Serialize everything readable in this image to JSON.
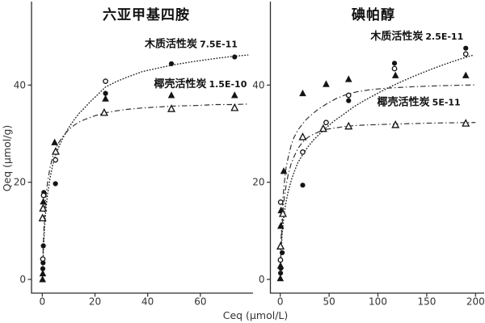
{
  "figure": {
    "x_axis_label": "Ceq (μmol/L)",
    "y_axis_label": "Qeq (μmol/g)",
    "ink_color": "#141414",
    "background_color": "#ffffff"
  },
  "chart_data": [
    {
      "type": "scatter",
      "title": "六亚甲基四胺",
      "xlabel": "Ceq (μmol/L)",
      "ylabel": "Qeq (μmol/g)",
      "xlim": [
        -4,
        80
      ],
      "ylim": [
        -2,
        57
      ],
      "xticks": [
        0,
        20,
        40,
        60
      ],
      "yticks": [
        0,
        20,
        40
      ],
      "grid": false,
      "annotations": [
        {
          "label": "木质活性炭",
          "value": "7.5E-11",
          "x": 56.5,
          "y": 47.8
        },
        {
          "label": "椰壳活性炭",
          "value": "1.5E-10",
          "x": 60,
          "y": 39.6
        }
      ],
      "series": [
        {
          "id": "wood-filled-circle",
          "name": "木质活性炭 (filled circle)",
          "marker": "circle-filled",
          "points": [
            [
              0.2,
              2.2
            ],
            [
              0.3,
              3.4
            ],
            [
              0.4,
              6.9
            ],
            [
              0.6,
              17.9
            ],
            [
              5,
              19.7
            ],
            [
              24,
              38.3
            ],
            [
              49,
              44.4
            ],
            [
              73,
              45.8
            ]
          ]
        },
        {
          "id": "wood-open-circle",
          "name": "木质活性炭 (open circle)",
          "marker": "circle-open",
          "points": [
            [
              0.2,
              4.2
            ],
            [
              0.5,
              17.3
            ],
            [
              5,
              24.6
            ],
            [
              24,
              40.8
            ]
          ]
        },
        {
          "id": "coconut-filled-triangle",
          "name": "椰壳活性炭 (filled triangle)",
          "marker": "triangle-filled",
          "points": [
            [
              0.1,
              0
            ],
            [
              0.2,
              1.2
            ],
            [
              0.4,
              16
            ],
            [
              4.7,
              28.2
            ],
            [
              24,
              37.2
            ],
            [
              49,
              37.9
            ],
            [
              73,
              37.9
            ]
          ]
        },
        {
          "id": "coconut-open-triangle",
          "name": "椰壳活性炭 (open triangle)",
          "marker": "triangle-open",
          "points": [
            [
              0.1,
              12.6
            ],
            [
              0.3,
              14.6
            ],
            [
              5.1,
              26.3
            ],
            [
              23.5,
              34.3
            ],
            [
              49,
              35.1
            ],
            [
              73,
              35.3
            ]
          ]
        }
      ],
      "curves": [
        {
          "id": "wood-fit",
          "style": "dotted",
          "points": [
            [
              0.15,
              2
            ],
            [
              0.4,
              5.5
            ],
            [
              0.7,
              9
            ],
            [
              1,
              12
            ],
            [
              1.5,
              15
            ],
            [
              2,
              17.5
            ],
            [
              3,
              21
            ],
            [
              4,
              23.6
            ],
            [
              5,
              25.5
            ],
            [
              6.5,
              27.6
            ],
            [
              8,
              29.3
            ],
            [
              10,
              31.2
            ],
            [
              12,
              32.8
            ],
            [
              14,
              34.2
            ],
            [
              16,
              35.3
            ],
            [
              18,
              36.5
            ],
            [
              20,
              37.5
            ],
            [
              24,
              39.6
            ],
            [
              28,
              40.7
            ],
            [
              32,
              41.6
            ],
            [
              38,
              42.8
            ],
            [
              44,
              43.5
            ],
            [
              50,
              44.2
            ],
            [
              58,
              44.9
            ],
            [
              66,
              45.5
            ],
            [
              72,
              45.9
            ],
            [
              78,
              46.2
            ]
          ]
        },
        {
          "id": "coconut-fit",
          "style": "dashdot",
          "points": [
            [
              0.15,
              3
            ],
            [
              0.4,
              7.5
            ],
            [
              0.7,
              11.5
            ],
            [
              1,
              14.5
            ],
            [
              1.5,
              17.6
            ],
            [
              2,
              20
            ],
            [
              3,
              23.2
            ],
            [
              4,
              25.3
            ],
            [
              5,
              26.8
            ],
            [
              6.5,
              28.4
            ],
            [
              8,
              29.6
            ],
            [
              10,
              30.8
            ],
            [
              12,
              31.7
            ],
            [
              14,
              32.4
            ],
            [
              16,
              32.9
            ],
            [
              18,
              33.3
            ],
            [
              20,
              33.7
            ],
            [
              24,
              34.3
            ],
            [
              28,
              34.7
            ],
            [
              32,
              35
            ],
            [
              38,
              35.3
            ],
            [
              44,
              35.5
            ],
            [
              50,
              35.7
            ],
            [
              58,
              35.8
            ],
            [
              66,
              36
            ],
            [
              72,
              36
            ],
            [
              78,
              36.1
            ]
          ]
        }
      ]
    },
    {
      "type": "scatter",
      "title": "碘帕醇",
      "xlabel": "Ceq (μmol/L)",
      "ylabel": "Qeq (μmol/g)",
      "xlim": [
        -10,
        210
      ],
      "ylim": [
        -2,
        57
      ],
      "xticks": [
        0,
        50,
        100,
        150,
        200
      ],
      "yticks": [
        0,
        20,
        40
      ],
      "grid": false,
      "annotations": [
        {
          "label": "木质活性炭",
          "value": "2.5E-11",
          "x": 140,
          "y": 49.4
        },
        {
          "label": "椰壳活性炭",
          "value": "5E-11",
          "x": 142,
          "y": 35.8
        }
      ],
      "series": [
        {
          "id": "wood-filled-circle",
          "name": "木质活性炭 (filled circle)",
          "marker": "circle-filled",
          "points": [
            [
              0.3,
              1.3
            ],
            [
              0.6,
              2.3
            ],
            [
              2,
              5.5
            ],
            [
              23,
              19.4
            ],
            [
              70,
              36.8
            ],
            [
              117,
              44.5
            ],
            [
              190,
              47.6
            ]
          ]
        },
        {
          "id": "wood-open-circle",
          "name": "木质活性炭 (open circle)",
          "marker": "circle-open",
          "points": [
            [
              0.2,
              4
            ],
            [
              0.4,
              15.9
            ],
            [
              23,
              26.2
            ],
            [
              47,
              32.3
            ],
            [
              70,
              37.9
            ],
            [
              117,
              43.4
            ],
            [
              190,
              46.4
            ]
          ]
        },
        {
          "id": "coconut-filled-triangle",
          "name": "椰壳活性炭 (filled triangle)",
          "marker": "triangle-filled",
          "points": [
            [
              0.1,
              0.2
            ],
            [
              0.3,
              2.8
            ],
            [
              0.5,
              11
            ],
            [
              0.8,
              14.2
            ],
            [
              3.6,
              22.3
            ],
            [
              23,
              38.3
            ],
            [
              47,
              40.2
            ],
            [
              70,
              41.2
            ],
            [
              118,
              42
            ],
            [
              190,
              42
            ]
          ]
        },
        {
          "id": "coconut-open-triangle",
          "name": "椰壳活性炭 (open triangle)",
          "marker": "triangle-open",
          "points": [
            [
              0.3,
              6.8
            ],
            [
              2.7,
              13.5
            ],
            [
              23,
              29.3
            ],
            [
              44,
              31
            ],
            [
              70,
              31.5
            ],
            [
              118,
              31.8
            ],
            [
              190,
              32.1
            ]
          ]
        }
      ],
      "curves": [
        {
          "id": "wood-fit",
          "style": "dotted",
          "points": [
            [
              0.5,
              4
            ],
            [
              1,
              6
            ],
            [
              2,
              9.5
            ],
            [
              3,
              11.5
            ],
            [
              4,
              13.5
            ],
            [
              6,
              16
            ],
            [
              8,
              18
            ],
            [
              11,
              20.2
            ],
            [
              14,
              22
            ],
            [
              18,
              24
            ],
            [
              23,
              25.7
            ],
            [
              28,
              27.2
            ],
            [
              34,
              28.7
            ],
            [
              40,
              29.9
            ],
            [
              47,
              31.2
            ],
            [
              55,
              32.6
            ],
            [
              65,
              34
            ],
            [
              75,
              35.5
            ],
            [
              85,
              36.7
            ],
            [
              95,
              37.8
            ],
            [
              110,
              39.4
            ],
            [
              125,
              40.8
            ],
            [
              140,
              42.1
            ],
            [
              155,
              43.3
            ],
            [
              170,
              44.4
            ],
            [
              185,
              45.4
            ],
            [
              198,
              46.2
            ]
          ]
        },
        {
          "id": "coconut-fit-upper",
          "style": "dashdot",
          "points": [
            [
              0.5,
              6
            ],
            [
              1,
              9
            ],
            [
              2,
              14
            ],
            [
              3,
              17.3
            ],
            [
              4,
              19.5
            ],
            [
              6,
              23
            ],
            [
              8,
              25
            ],
            [
              11,
              27.5
            ],
            [
              14,
              29.2
            ],
            [
              18,
              30.7
            ],
            [
              22,
              31.8
            ],
            [
              27,
              33
            ],
            [
              33,
              34.1
            ],
            [
              40,
              35.2
            ],
            [
              48,
              36.2
            ],
            [
              57,
              37.2
            ],
            [
              67,
              38
            ],
            [
              78,
              38.6
            ],
            [
              90,
              39
            ],
            [
              105,
              39.3
            ],
            [
              120,
              39.5
            ],
            [
              140,
              39.7
            ],
            [
              160,
              39.85
            ],
            [
              180,
              39.95
            ],
            [
              200,
              40.05
            ]
          ]
        },
        {
          "id": "coconut-fit-lower",
          "style": "dashdot",
          "points": [
            [
              0.5,
              4.5
            ],
            [
              1,
              7
            ],
            [
              2,
              11.5
            ],
            [
              3,
              14.5
            ],
            [
              4,
              16.5
            ],
            [
              6,
              19.3
            ],
            [
              8,
              21.5
            ],
            [
              11,
              23.7
            ],
            [
              14,
              25.2
            ],
            [
              18,
              26.9
            ],
            [
              23,
              28.3
            ],
            [
              28,
              29.2
            ],
            [
              34,
              29.9
            ],
            [
              40,
              30.4
            ],
            [
              48,
              30.9
            ],
            [
              57,
              31.2
            ],
            [
              67,
              31.5
            ],
            [
              78,
              31.7
            ],
            [
              90,
              31.8
            ],
            [
              105,
              31.9
            ],
            [
              120,
              32
            ],
            [
              140,
              32.1
            ],
            [
              160,
              32.2
            ],
            [
              180,
              32.25
            ],
            [
              200,
              32.3
            ]
          ]
        }
      ]
    }
  ]
}
